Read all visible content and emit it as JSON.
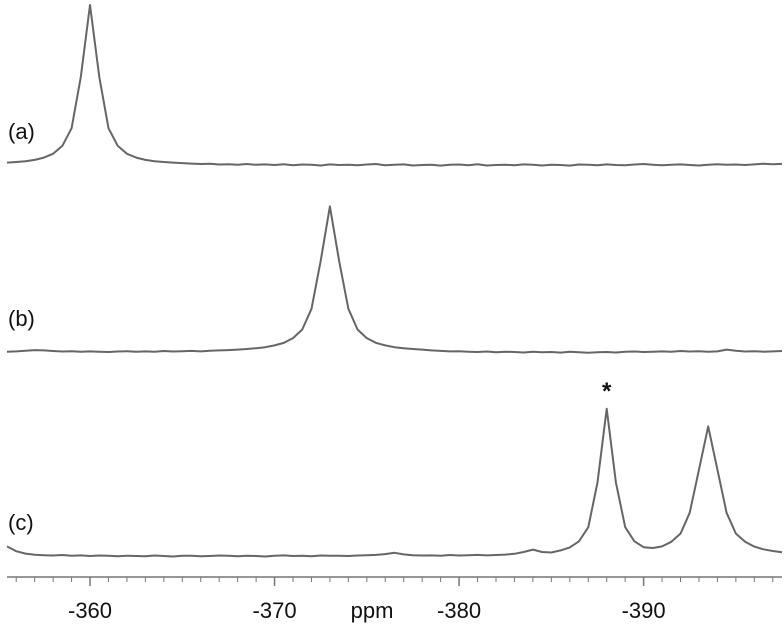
{
  "chart_data": {
    "type": "line",
    "x_label": "ppm",
    "xlim": [
      -355.5,
      -397.5
    ],
    "xticks": [
      -360,
      -370,
      -380,
      -390
    ],
    "ylim": [
      0,
      100
    ],
    "annotation": "*",
    "x": [
      -355.5,
      -356,
      -356.5,
      -357,
      -357.5,
      -358,
      -358.5,
      -359,
      -359.5,
      -360,
      -360.5,
      -361,
      -361.5,
      -362,
      -362.5,
      -363,
      -363.5,
      -364,
      -364.5,
      -365,
      -365.5,
      -366,
      -366.5,
      -367,
      -367.5,
      -368,
      -368.5,
      -369,
      -369.5,
      -370,
      -370.5,
      -371,
      -371.5,
      -372,
      -372.5,
      -373,
      -373.5,
      -374,
      -374.5,
      -375,
      -375.5,
      -376,
      -376.5,
      -377,
      -377.5,
      -378,
      -378.5,
      -379,
      -379.5,
      -380,
      -380.5,
      -381,
      -381.5,
      -382,
      -382.5,
      -383,
      -383.5,
      -384,
      -384.5,
      -385,
      -385.5,
      -386,
      -386.5,
      -387,
      -387.5,
      -388,
      -388.5,
      -389,
      -389.5,
      -390,
      -390.5,
      -391,
      -391.5,
      -392,
      -392.5,
      -393,
      -393.5,
      -394,
      -394.5,
      -395,
      -395.5,
      -396,
      -396.5,
      -397,
      -397.5
    ],
    "series": [
      {
        "name": "(a)",
        "color": "#666666",
        "values": [
          1.5,
          1.9,
          2.4,
          3.2,
          4.6,
          7,
          12,
          23,
          55,
          100,
          55,
          23,
          12,
          7,
          4.6,
          3.2,
          2.4,
          1.9,
          1.5,
          1.2,
          0.9,
          0.6,
          0.8,
          0.3,
          0.5,
          0.2,
          0.6,
          0.1,
          0.4,
          0.0,
          0.5,
          -0.2,
          0.3,
          0.1,
          -0.3,
          0.4,
          0.0,
          0.2,
          -0.1,
          0.3,
          0.6,
          -0.2,
          0.1,
          0.4,
          -0.3,
          0.0,
          0.2,
          -0.4,
          0.1,
          0.3,
          -0.1,
          0.5,
          -0.3,
          0.0,
          0.2,
          -0.2,
          0.4,
          0.1,
          -0.3,
          0.2,
          0.0,
          -0.4,
          0.3,
          0.1,
          -0.2,
          0.4,
          0.0,
          -0.1,
          0.3,
          0.6,
          0.2,
          -0.2,
          0.1,
          0.4,
          0.0,
          -0.3,
          0.2,
          0.5,
          0.1,
          0.3,
          0.0,
          0.4,
          0.8,
          0.5,
          0.7
        ]
      },
      {
        "name": "(b)",
        "color": "#666666",
        "values": [
          0.2,
          0.4,
          0.8,
          1.2,
          1.0,
          0.6,
          0.3,
          0.5,
          0.1,
          0.4,
          0.2,
          0.0,
          0.3,
          0.5,
          0.2,
          0.4,
          0.1,
          0.6,
          0.3,
          0.5,
          0.7,
          0.4,
          0.8,
          1.0,
          1.2,
          1.5,
          1.9,
          2.4,
          3.0,
          4.1,
          5.7,
          8.7,
          14,
          27,
          57,
          91,
          57,
          27,
          14,
          8.7,
          5.7,
          4.1,
          3.0,
          2.4,
          1.9,
          1.5,
          1.0,
          0.7,
          0.4,
          0.5,
          0.2,
          0.0,
          0.3,
          -0.1,
          0.2,
          0.0,
          -0.3,
          0.1,
          -0.2,
          0.0,
          -0.4,
          0.2,
          -0.1,
          -0.5,
          -0.2,
          0.0,
          -0.3,
          0.1,
          0.3,
          0.0,
          0.2,
          0.4,
          0.1,
          0.6,
          0.3,
          0.5,
          0.2,
          0.4,
          1.5,
          0.8,
          0.3,
          0.5,
          0.2,
          0.4,
          0.6
        ]
      },
      {
        "name": "(c)",
        "color": "#666666",
        "values": [
          6,
          3,
          1.5,
          0.8,
          0.5,
          0.3,
          0.6,
          0.2,
          0.4,
          0.0,
          0.3,
          0.1,
          -0.2,
          0.2,
          0.0,
          -0.1,
          0.3,
          0.0,
          -0.3,
          0.1,
          0.2,
          -0.2,
          0.0,
          0.3,
          0.1,
          -0.1,
          0.2,
          0.0,
          -0.3,
          0.1,
          0.4,
          0.0,
          0.2,
          -0.1,
          0.3,
          0.1,
          0.2,
          0.0,
          0.3,
          0.5,
          0.7,
          1.2,
          2,
          1.0,
          0.5,
          0.3,
          0.4,
          0.2,
          0.6,
          0.3,
          0.5,
          0.7,
          0.4,
          0.6,
          0.9,
          1.4,
          2.5,
          4,
          2.5,
          2.2,
          3.5,
          5.4,
          9.2,
          18,
          46,
          92,
          46,
          18,
          9.2,
          5.5,
          5,
          6,
          8.9,
          14,
          27,
          54,
          81,
          54,
          27,
          14,
          8.9,
          5.9,
          4.2,
          3.1,
          2.4
        ]
      }
    ]
  }
}
